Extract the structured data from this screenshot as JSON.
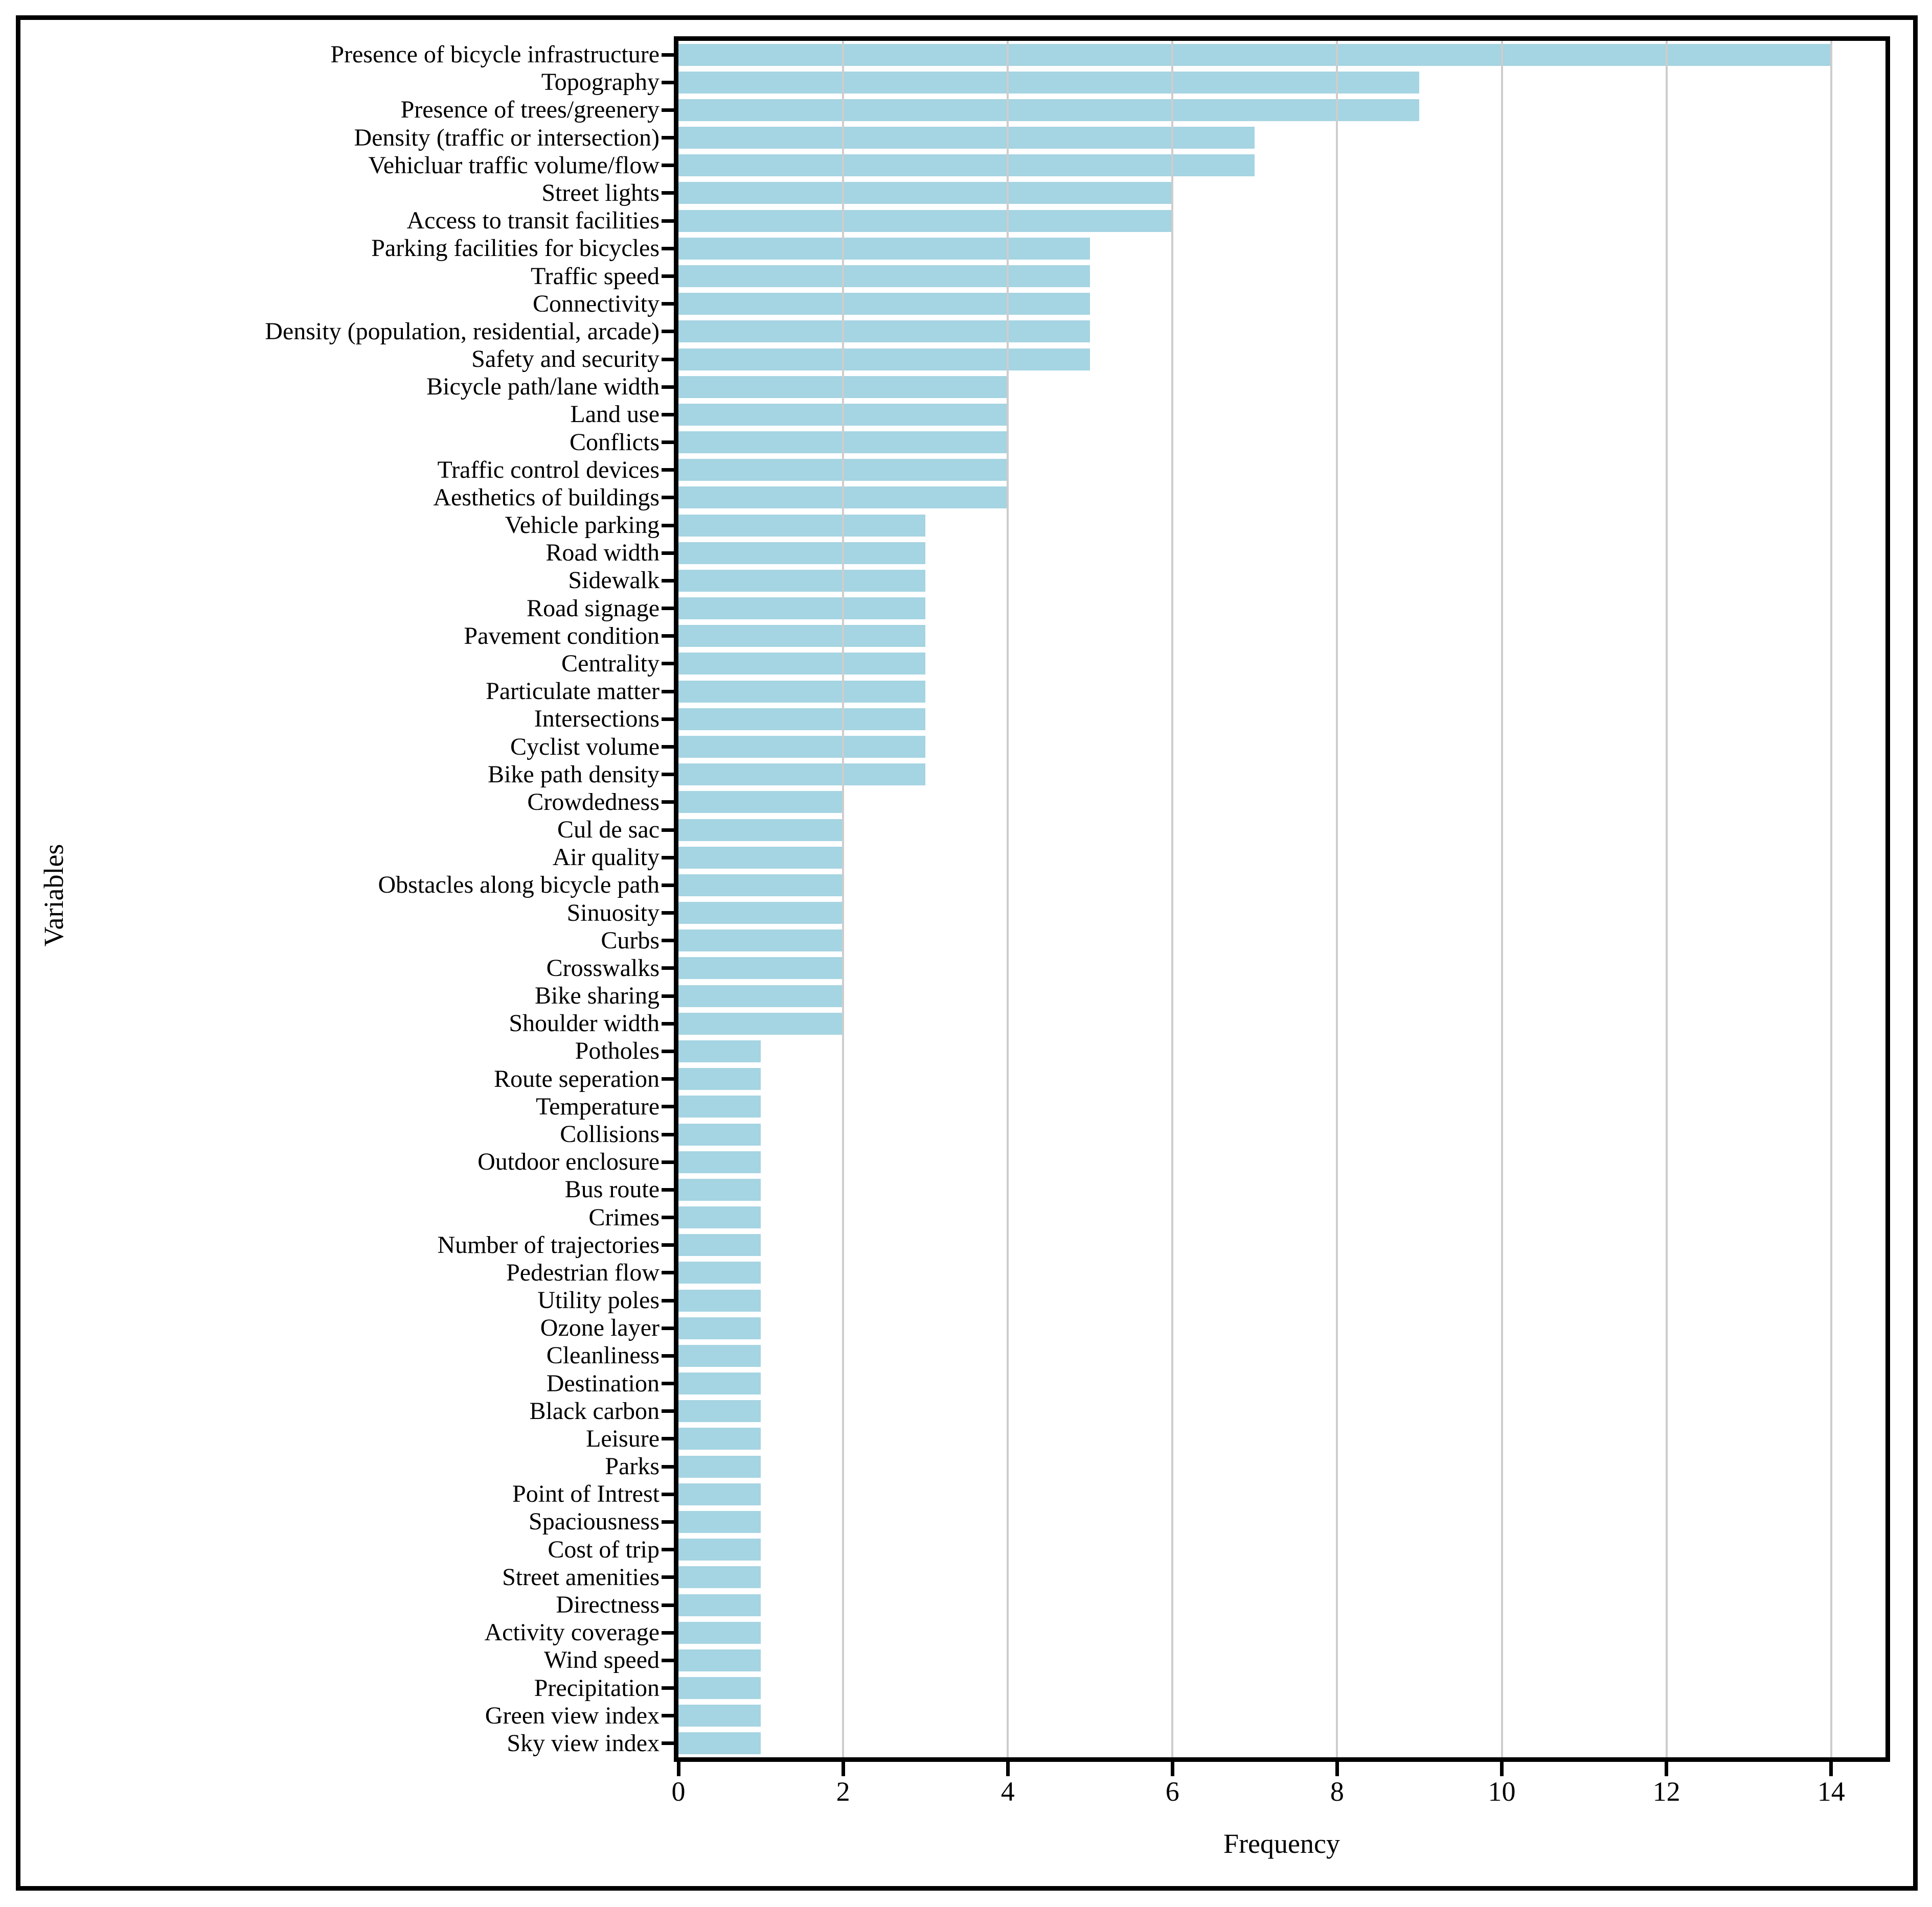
{
  "chart_data": {
    "type": "bar",
    "orientation": "horizontal",
    "title": "",
    "xlabel": "Frequency",
    "ylabel": "Variables",
    "xlim": [
      0,
      14.66
    ],
    "xticks": [
      0,
      2,
      4,
      6,
      8,
      10,
      12,
      14
    ],
    "grid": true,
    "legend": "none",
    "bar_color": "#a5d4e2",
    "gridline_color": "#cdcdcd",
    "categories": [
      "Presence of bicycle infrastructure",
      "Topography",
      "Presence of trees/greenery",
      "Density (traffic or intersection)",
      "Vehicluar traffic volume/flow",
      "Street lights",
      "Access to transit facilities",
      "Parking facilities for bicycles",
      "Traffic speed",
      "Connectivity",
      "Density (population, residential, arcade)",
      "Safety and security",
      "Bicycle path/lane width",
      "Land use",
      "Conflicts",
      "Traffic control devices",
      "Aesthetics of buildings",
      "Vehicle parking",
      "Road width",
      "Sidewalk",
      "Road signage",
      "Pavement condition",
      "Centrality",
      "Particulate matter",
      "Intersections",
      "Cyclist volume",
      "Bike path density",
      "Crowdedness",
      "Cul de sac",
      "Air quality",
      "Obstacles along bicycle path",
      "Sinuosity",
      "Curbs",
      "Crosswalks",
      "Bike sharing",
      "Shoulder width",
      "Potholes",
      "Route seperation",
      "Temperature",
      "Collisions",
      "Outdoor enclosure",
      "Bus route",
      "Crimes",
      "Number of trajectories",
      "Pedestrian flow",
      "Utility poles",
      "Ozone layer",
      "Cleanliness",
      "Destination",
      "Black carbon",
      "Leisure",
      "Parks",
      "Point of Intrest",
      "Spaciousness",
      "Cost of trip",
      "Street amenities",
      "Directness",
      "Activity coverage",
      "Wind speed",
      "Precipitation",
      "Green view index",
      "Sky view index"
    ],
    "values": [
      14,
      9,
      9,
      7,
      7,
      6,
      6,
      5,
      5,
      5,
      5,
      5,
      4,
      4,
      4,
      4,
      4,
      3,
      3,
      3,
      3,
      3,
      3,
      3,
      3,
      3,
      3,
      2,
      2,
      2,
      2,
      2,
      2,
      2,
      2,
      2,
      1,
      1,
      1,
      1,
      1,
      1,
      1,
      1,
      1,
      1,
      1,
      1,
      1,
      1,
      1,
      1,
      1,
      1,
      1,
      1,
      1,
      1,
      1,
      1,
      1,
      1
    ]
  }
}
